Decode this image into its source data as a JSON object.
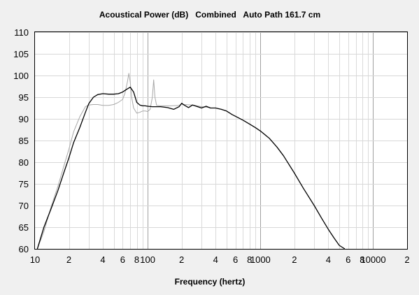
{
  "chart_data": {
    "type": "line",
    "title": "Acoustical Power (dB)   Combined   Auto Path 161.7 cm",
    "xlabel": "Frequency (hertz)",
    "ylabel": "",
    "x_scale": "log",
    "xlim": [
      10,
      20000
    ],
    "ylim": [
      60,
      110
    ],
    "grid": true,
    "y_ticks": [
      "60",
      "65",
      "70",
      "75",
      "80",
      "85",
      "90",
      "95",
      "100",
      "105",
      "110"
    ],
    "x_tick_values": [
      10,
      20,
      40,
      60,
      80,
      100,
      200,
      400,
      600,
      800,
      1000,
      2000,
      4000,
      6000,
      8000,
      10000,
      20000
    ],
    "x_tick_labels": [
      "10",
      "2",
      "4",
      "6",
      "8",
      "100",
      "2",
      "4",
      "6",
      "8",
      "1000",
      "2",
      "4",
      "6",
      "8",
      "10000",
      "2"
    ],
    "colors": {
      "combined": "#000000",
      "secondary": "#a8a8a8"
    },
    "series": [
      {
        "color": "#000000",
        "x": [
          10.5,
          12,
          14,
          16,
          18,
          20,
          22,
          25,
          28,
          30,
          33,
          36,
          40,
          45,
          50,
          55,
          60,
          65,
          70,
          75,
          80,
          85,
          90,
          95,
          100,
          110,
          130,
          150,
          170,
          190,
          200,
          210,
          230,
          250,
          270,
          300,
          330,
          360,
          400,
          450,
          500,
          560,
          630,
          700,
          800,
          900,
          1000,
          1200,
          1400,
          1600,
          2000,
          2400,
          3000,
          3500,
          4000,
          4500,
          5000,
          5600
        ],
        "y": [
          60,
          65,
          69.5,
          73.5,
          77.5,
          81,
          84.5,
          88,
          91.5,
          93.5,
          95,
          95.6,
          95.8,
          95.7,
          95.7,
          95.8,
          96.2,
          96.8,
          97.3,
          96.2,
          93.8,
          93.2,
          93,
          93,
          92.9,
          92.8,
          92.8,
          92.6,
          92.2,
          92.8,
          93.6,
          93.2,
          92.6,
          93.2,
          92.9,
          92.5,
          92.9,
          92.5,
          92.5,
          92.2,
          91.8,
          91,
          90.3,
          89.7,
          88.8,
          88,
          87.2,
          85.5,
          83.5,
          81.5,
          77.5,
          74,
          70,
          67,
          64.5,
          62.5,
          60.8,
          59.8
        ]
      },
      {
        "color": "#a8a8a8",
        "x": [
          10.5,
          12,
          14,
          16,
          18,
          20,
          22,
          25,
          28,
          30,
          33,
          36,
          40,
          45,
          50,
          55,
          60,
          63,
          66,
          68,
          70,
          72,
          75,
          80,
          85,
          90,
          95,
          100,
          105,
          110,
          113,
          116,
          120,
          130,
          140,
          160,
          190,
          200,
          210,
          250,
          300,
          360
        ],
        "y": [
          60,
          64,
          70,
          74.5,
          79,
          83,
          87,
          90.5,
          92.8,
          93.2,
          93.3,
          93.3,
          93.1,
          93.1,
          93.3,
          93.8,
          94.5,
          96,
          98.5,
          100.5,
          98.5,
          95,
          92.5,
          91.3,
          91.5,
          91.8,
          91.8,
          91.7,
          92.2,
          95,
          99,
          95,
          93.1,
          93,
          93,
          93,
          93.1,
          93.4,
          93.3,
          93.2,
          92.8,
          92.6
        ]
      }
    ]
  }
}
